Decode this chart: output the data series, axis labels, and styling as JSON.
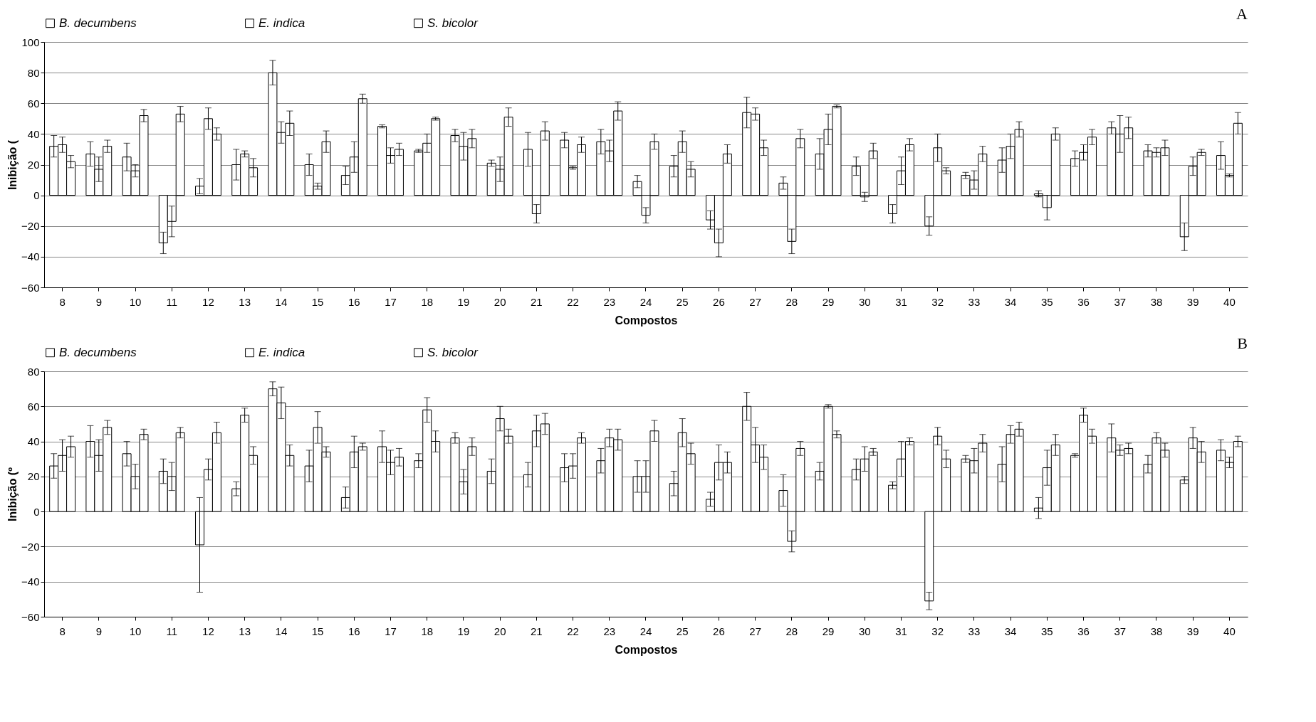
{
  "chart_data": [
    {
      "type": "bar",
      "annotations": [
        "A"
      ],
      "xlabel": "Compostos",
      "ylabel": "Inibição (",
      "categories": [
        "8",
        "9",
        "10",
        "11",
        "12",
        "13",
        "14",
        "15",
        "16",
        "17",
        "18",
        "19",
        "20",
        "21",
        "22",
        "23",
        "24",
        "25",
        "26",
        "27",
        "28",
        "29",
        "30",
        "31",
        "32",
        "33",
        "34",
        "35",
        "36",
        "37",
        "38",
        "39",
        "40"
      ],
      "series": [
        {
          "name": "B. decumbens",
          "color": "#ffffff",
          "values": [
            32,
            27,
            25,
            -31,
            6,
            20,
            80,
            20,
            13,
            45,
            29,
            39,
            21,
            30,
            36,
            35,
            9,
            19,
            -16,
            54,
            8,
            27,
            19,
            -12,
            -20,
            13,
            23,
            1,
            24,
            44,
            29,
            -27,
            26
          ],
          "errors": [
            7,
            8,
            9,
            7,
            5,
            10,
            8,
            7,
            6,
            1,
            1,
            4,
            2,
            11,
            5,
            8,
            4,
            7,
            6,
            10,
            4,
            10,
            6,
            6,
            6,
            2,
            8,
            2,
            5,
            4,
            4,
            9,
            9
          ]
        },
        {
          "name": "E. indica",
          "color": "#ffffff",
          "values": [
            33,
            17,
            16,
            -17,
            50,
            27,
            41,
            6,
            25,
            26,
            34,
            32,
            17,
            -12,
            18,
            29,
            -13,
            35,
            -31,
            53,
            -30,
            43,
            -1,
            16,
            31,
            10,
            32,
            -8,
            28,
            40,
            28,
            19,
            13
          ],
          "errors": [
            5,
            8,
            4,
            10,
            7,
            2,
            7,
            2,
            10,
            5,
            6,
            9,
            8,
            6,
            1,
            7,
            5,
            7,
            9,
            4,
            8,
            10,
            3,
            9,
            9,
            6,
            8,
            8,
            5,
            12,
            3,
            6,
            1
          ]
        },
        {
          "name": "S. bicolor",
          "color": "#ffffff",
          "values": [
            22,
            32,
            52,
            53,
            40,
            18,
            47,
            35,
            63,
            30,
            50,
            37,
            51,
            42,
            33,
            55,
            35,
            17,
            27,
            31,
            37,
            58,
            29,
            33,
            16,
            27,
            43,
            40,
            38,
            44,
            31,
            28,
            47
          ],
          "errors": [
            4,
            4,
            4,
            5,
            4,
            6,
            8,
            7,
            3,
            4,
            1,
            6,
            6,
            6,
            5,
            6,
            5,
            5,
            6,
            5,
            6,
            1,
            5,
            4,
            2,
            5,
            5,
            4,
            5,
            7,
            5,
            2,
            7
          ]
        }
      ],
      "ylim": [
        -60,
        100
      ],
      "yticks": [
        -60,
        -40,
        -20,
        0,
        20,
        40,
        60,
        80,
        100
      ],
      "grid": "y",
      "legend": "top"
    },
    {
      "type": "bar",
      "annotations": [
        "B"
      ],
      "xlabel": "Compostos",
      "ylabel": "Inibição (º",
      "categories": [
        "8",
        "9",
        "10",
        "11",
        "12",
        "13",
        "14",
        "15",
        "16",
        "17",
        "18",
        "19",
        "20",
        "21",
        "22",
        "23",
        "24",
        "25",
        "26",
        "27",
        "28",
        "29",
        "30",
        "31",
        "32",
        "33",
        "34",
        "35",
        "36",
        "37",
        "38",
        "39",
        "40"
      ],
      "series": [
        {
          "name": "B. decumbens",
          "color": "#ffffff",
          "values": [
            26,
            40,
            33,
            23,
            -19,
            13,
            70,
            26,
            8,
            37,
            29,
            42,
            23,
            21,
            25,
            29,
            20,
            16,
            7,
            60,
            12,
            23,
            24,
            15,
            -51,
            30,
            27,
            2,
            32,
            42,
            27,
            18,
            35
          ],
          "errors": [
            7,
            9,
            7,
            7,
            27,
            4,
            4,
            9,
            6,
            9,
            4,
            3,
            7,
            7,
            8,
            7,
            9,
            7,
            4,
            8,
            9,
            5,
            6,
            2,
            5,
            2,
            10,
            6,
            1,
            8,
            5,
            2,
            6
          ]
        },
        {
          "name": "E. indica",
          "color": "#ffffff",
          "values": [
            32,
            32,
            20,
            20,
            24,
            55,
            62,
            48,
            34,
            28,
            58,
            17,
            53,
            46,
            26,
            42,
            20,
            45,
            28,
            38,
            -17,
            60,
            30,
            30,
            43,
            29,
            44,
            25,
            55,
            35,
            42,
            42,
            28
          ],
          "errors": [
            9,
            9,
            7,
            8,
            6,
            4,
            9,
            9,
            9,
            7,
            7,
            7,
            7,
            9,
            7,
            5,
            9,
            8,
            10,
            10,
            6,
            1,
            7,
            10,
            5,
            7,
            5,
            10,
            4,
            3,
            3,
            6,
            3
          ]
        },
        {
          "name": "S. bicolor",
          "color": "#ffffff",
          "values": [
            37,
            48,
            44,
            45,
            45,
            32,
            32,
            34,
            37,
            31,
            40,
            37,
            43,
            50,
            42,
            41,
            46,
            33,
            28,
            31,
            36,
            44,
            34,
            40,
            30,
            39,
            47,
            38,
            43,
            36,
            35,
            34,
            40
          ],
          "errors": [
            6,
            4,
            3,
            3,
            6,
            5,
            6,
            3,
            2,
            5,
            6,
            5,
            4,
            6,
            3,
            6,
            6,
            6,
            6,
            7,
            4,
            2,
            2,
            2,
            5,
            5,
            4,
            6,
            4,
            3,
            4,
            6,
            3
          ]
        }
      ],
      "ylim": [
        -60,
        80
      ],
      "yticks": [
        -60,
        -40,
        -20,
        0,
        20,
        40,
        60,
        80
      ],
      "grid": "y",
      "legend": "top"
    }
  ]
}
